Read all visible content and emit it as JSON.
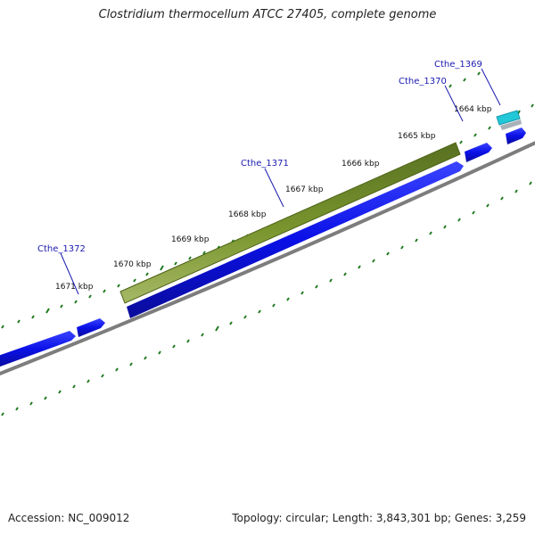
{
  "title": "Clostridium thermocellum ATCC 27405, complete genome",
  "footer": {
    "accession": "Accession: NC_009012",
    "summary": "Topology: circular; Length: 3,843,301 bp; Genes: 3,259"
  },
  "ruler": {
    "labels": [
      "1671 kbp",
      "1670 kbp",
      "1669 kbp",
      "1668 kbp",
      "1667 kbp",
      "1666 kbp",
      "1665 kbp",
      "1664 kbp"
    ]
  },
  "genes": [
    {
      "name": "Cthe_1372"
    },
    {
      "name": "Cthe_1371"
    },
    {
      "name": "Cthe_1370"
    },
    {
      "name": "Cthe_1369"
    }
  ],
  "colors": {
    "cds": "#0a10e6",
    "highlight": "#6e8a26",
    "small_feature": "#22c8d8",
    "tick": "#1e7a1e",
    "backbone": "#7d7d7d",
    "gene_label": "#1a1ab0"
  }
}
